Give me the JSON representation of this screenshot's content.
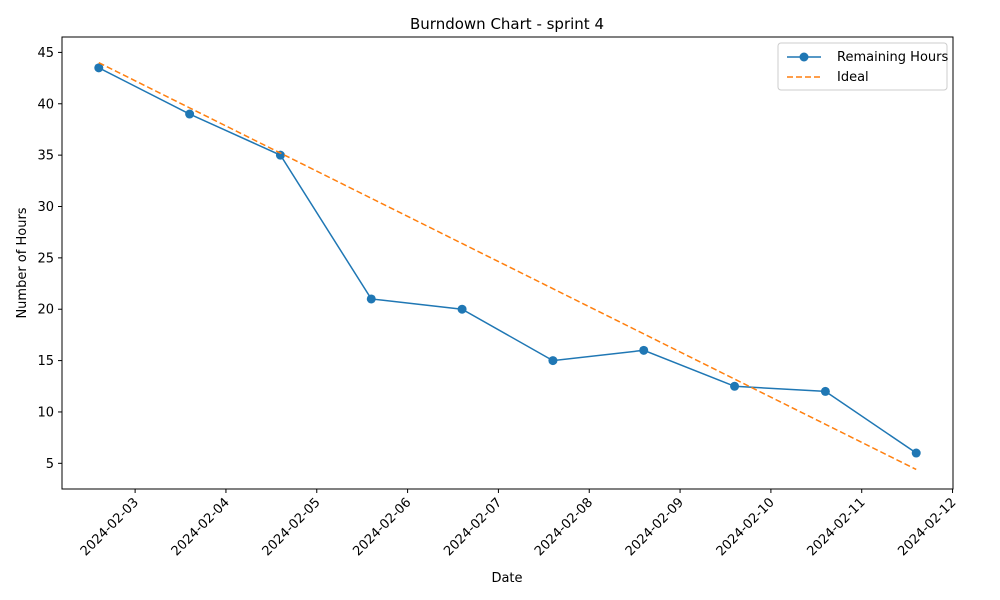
{
  "chart_data": {
    "type": "line",
    "title": "Burndown Chart - sprint 4",
    "xlabel": "Date",
    "ylabel": "Number of Hours",
    "x": [
      "2024-02-02",
      "2024-02-03",
      "2024-02-04",
      "2024-02-05",
      "2024-02-06",
      "2024-02-07",
      "2024-02-08",
      "2024-02-09",
      "2024-02-10",
      "2024-02-11"
    ],
    "x_ticks": [
      "2024-02-03",
      "2024-02-04",
      "2024-02-05",
      "2024-02-06",
      "2024-02-07",
      "2024-02-08",
      "2024-02-09",
      "2024-02-10",
      "2024-02-11",
      "2024-02-12"
    ],
    "y_ticks": [
      5,
      10,
      15,
      20,
      25,
      30,
      35,
      40,
      45
    ],
    "ylim": [
      2.5,
      46.5
    ],
    "grid": false,
    "legend_position": "top-right",
    "series": [
      {
        "name": "Remaining Hours",
        "color": "#1f77b4",
        "style": "solid-with-circle-markers",
        "values": [
          43.5,
          39,
          35,
          21,
          20,
          15,
          16,
          12.5,
          12,
          6
        ]
      },
      {
        "name": "Ideal",
        "color": "#ff7f0e",
        "style": "dashed",
        "values": [
          44,
          39.6,
          35.2,
          30.8,
          26.4,
          22,
          17.6,
          13.2,
          8.8,
          4.4
        ]
      }
    ]
  }
}
